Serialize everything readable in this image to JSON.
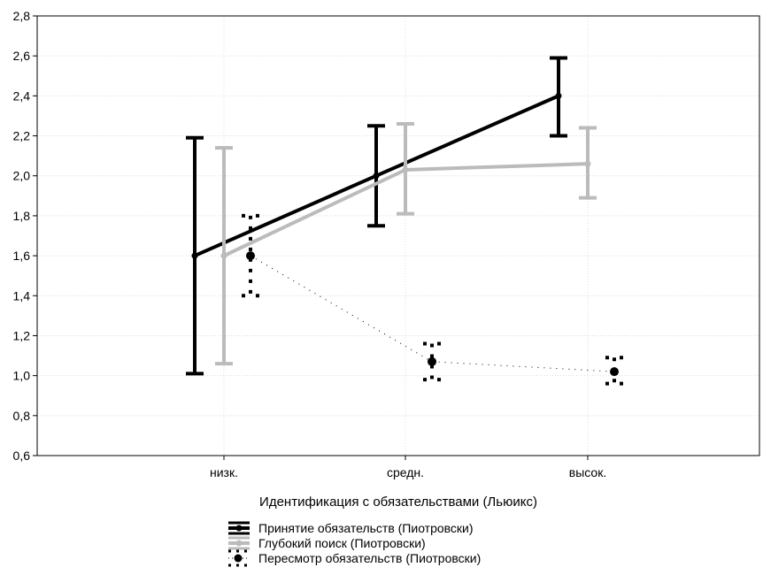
{
  "chart_data": {
    "type": "line",
    "xlabel": "Идентификация с обязательствами (Льюикс)",
    "ylabel": "",
    "categories": [
      "низк.",
      "средн.",
      "высок."
    ],
    "ylim": [
      0.6,
      2.8
    ],
    "yticks": [
      "0,6",
      "0,8",
      "1,0",
      "1,2",
      "1,4",
      "1,6",
      "1,8",
      "2,0",
      "2,2",
      "2,4",
      "2,6",
      "2,8"
    ],
    "grid": true,
    "legend_position": "bottom",
    "series": [
      {
        "name": "Принятие обязательств (Пиотровски)",
        "color": "#000000",
        "style": "solid",
        "values": [
          1.6,
          2.0,
          2.4
        ],
        "lower": [
          1.01,
          1.75,
          2.2
        ],
        "upper": [
          2.19,
          2.25,
          2.59
        ]
      },
      {
        "name": "Глубокий поиск (Пиотровски)",
        "color": "#bbbbbb",
        "style": "solid",
        "values": [
          1.6,
          2.03,
          2.06
        ],
        "lower": [
          1.06,
          1.81,
          1.89
        ],
        "upper": [
          2.14,
          2.26,
          2.24
        ]
      },
      {
        "name": "Пересмотр обязательств (Пиотровски)",
        "color": "#000000",
        "style": "dotted",
        "values": [
          1.6,
          1.07,
          1.02
        ],
        "lower": [
          1.4,
          0.98,
          0.96
        ],
        "upper": [
          1.8,
          1.16,
          1.09
        ]
      }
    ]
  }
}
